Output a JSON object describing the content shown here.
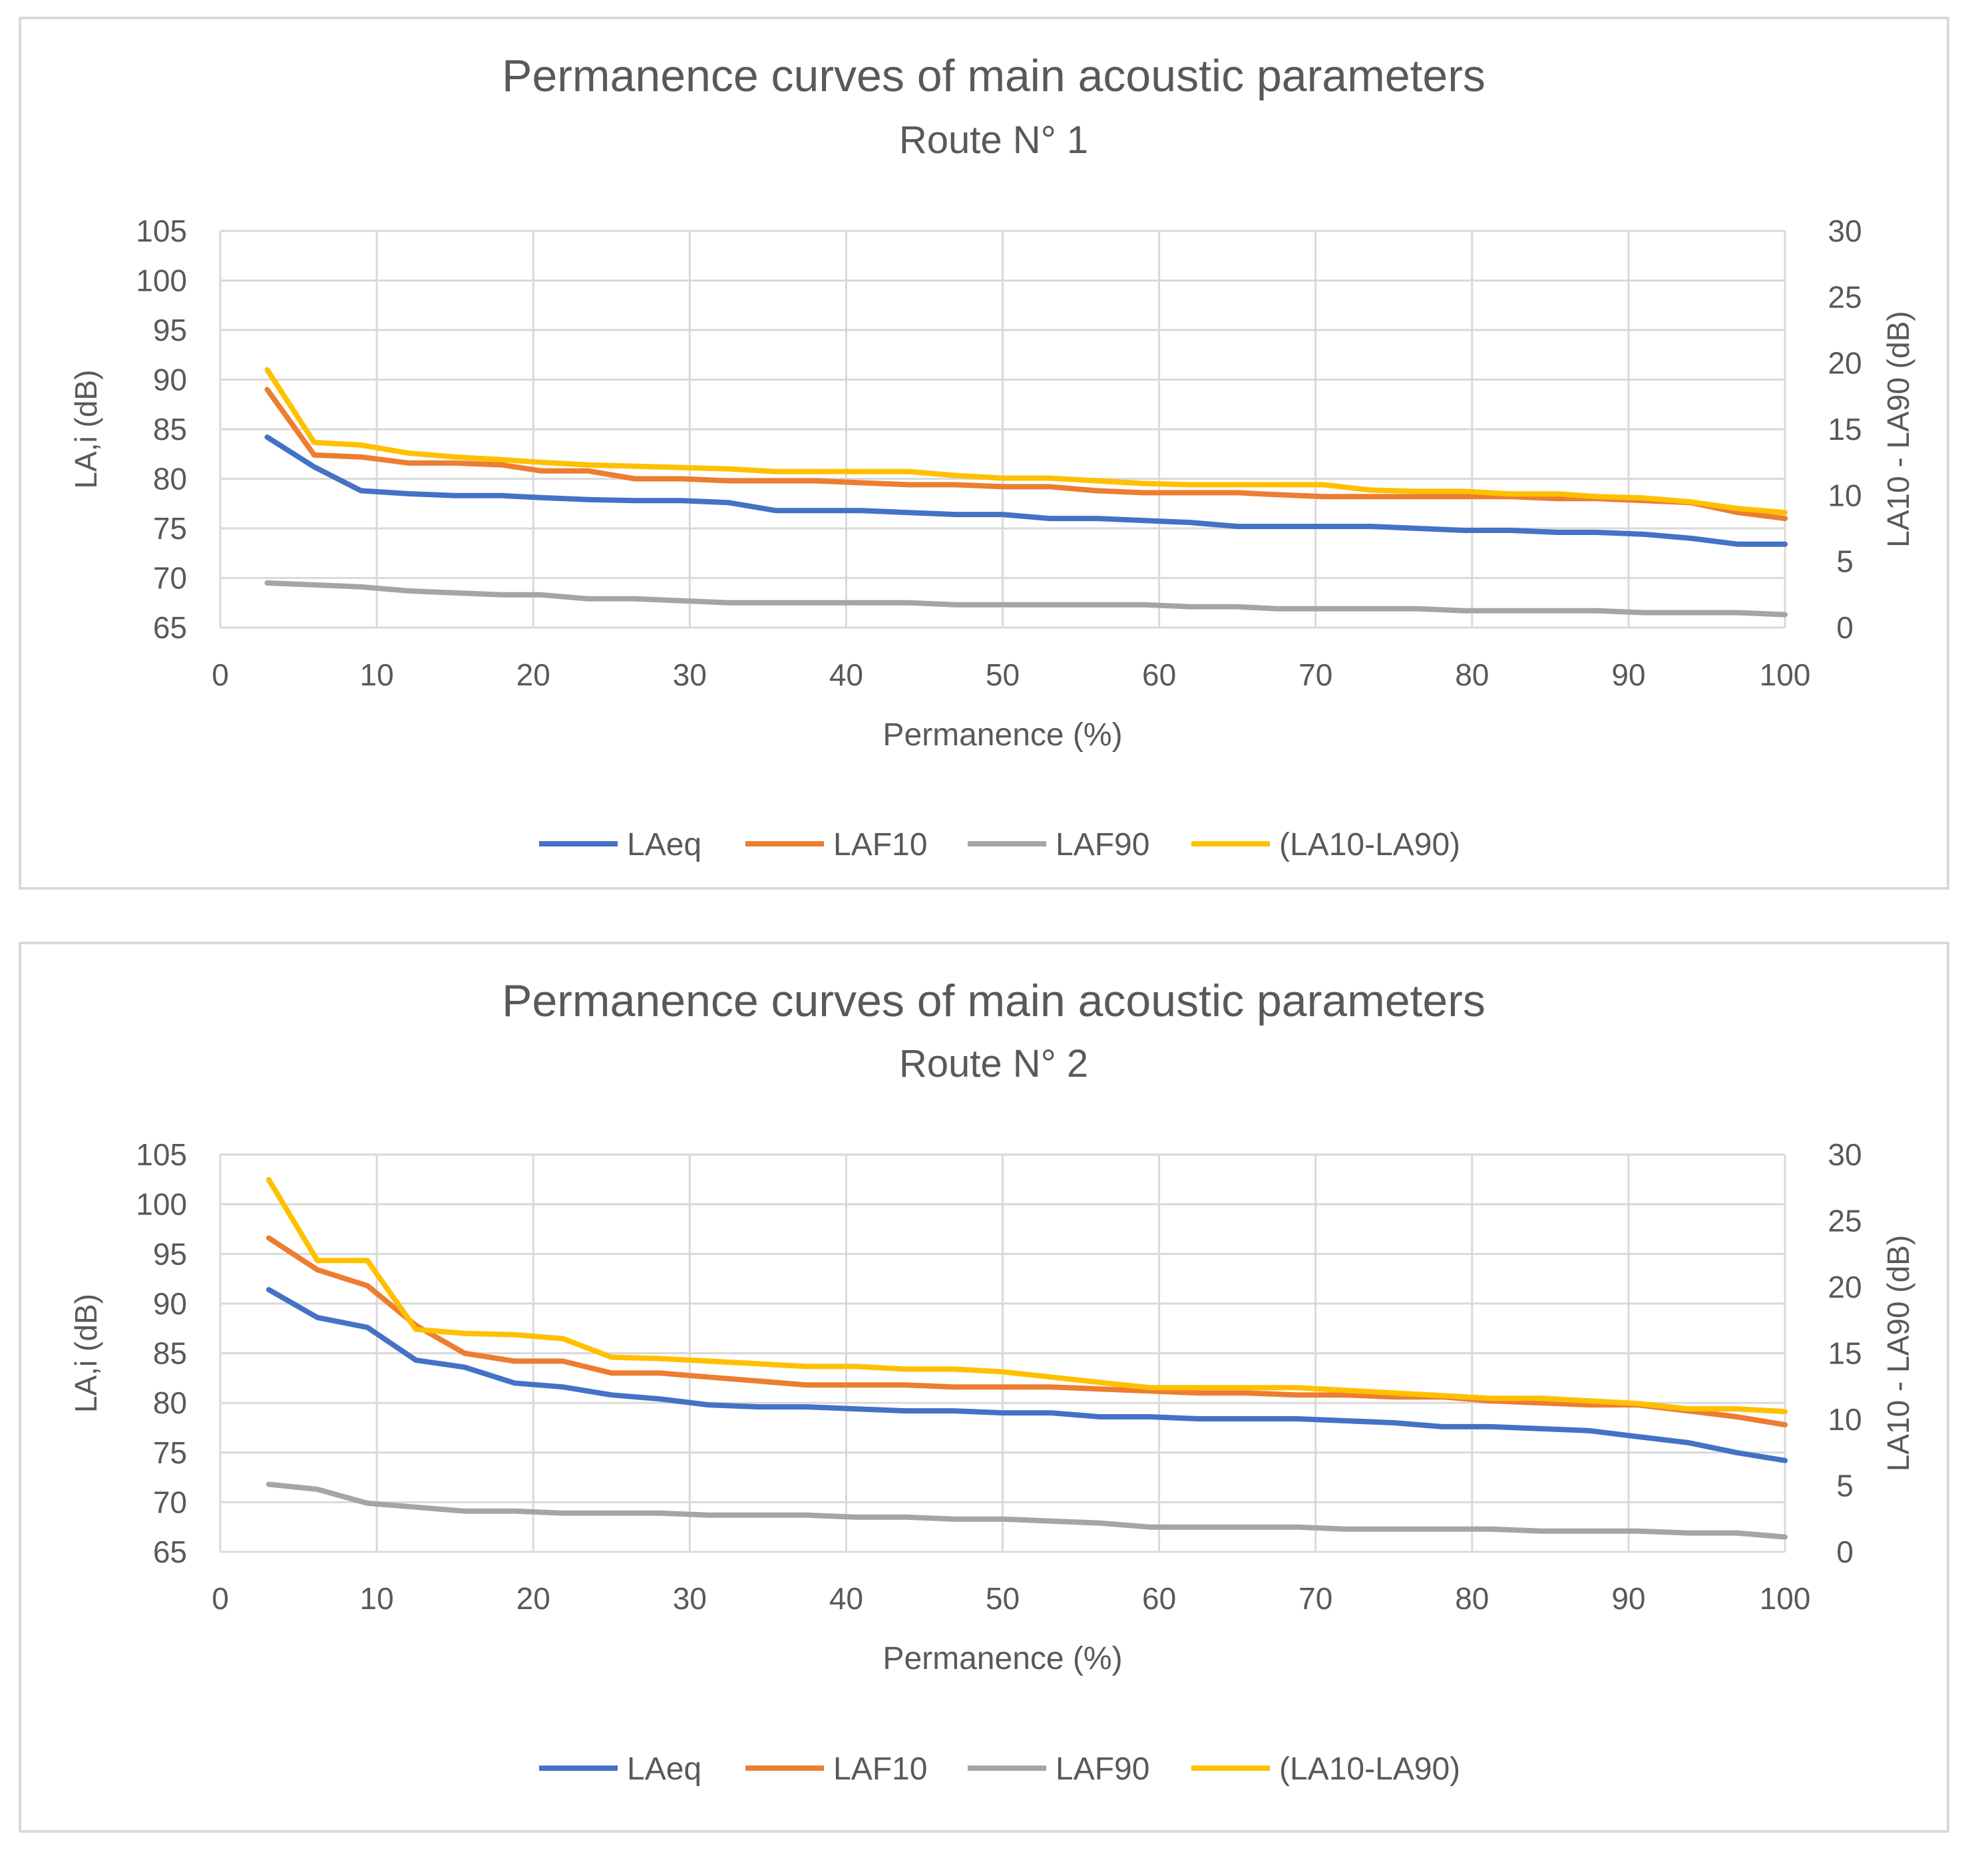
{
  "chart_data": [
    {
      "type": "line",
      "title": "Permanence curves of main acoustic parameters",
      "subtitle": "Route N° 1",
      "xlabel": "Permanence (%)",
      "ylabel": "LA,i (dB)",
      "y2label": "LA10 - LA90 (dB)",
      "xlim": [
        0,
        100
      ],
      "ylim": [
        65,
        105
      ],
      "y2lim": [
        0,
        30
      ],
      "xticks": [
        "0",
        "10",
        "20",
        "30",
        "40",
        "50",
        "60",
        "70",
        "80",
        "90",
        "100"
      ],
      "yticks": [
        "65",
        "70",
        "75",
        "80",
        "85",
        "90",
        "95",
        "100",
        "105"
      ],
      "y2ticks": [
        "0",
        "5",
        "10",
        "15",
        "20",
        "25",
        "30"
      ],
      "grid": true,
      "legend_position": "bottom",
      "x": [
        3,
        6,
        9,
        12,
        15,
        18,
        20.5,
        23.5,
        26.5,
        29.5,
        32.5,
        35.5,
        38,
        41,
        44,
        47,
        50,
        53,
        56,
        59,
        62,
        65,
        67.5,
        70.5,
        73.5,
        76.5,
        79.5,
        82.5,
        85.5,
        88,
        91,
        94,
        97,
        100
      ],
      "series": [
        {
          "name": "LAeq",
          "axis": "left",
          "color": "#4472C4",
          "values": [
            84.2,
            81.2,
            78.8,
            78.5,
            78.3,
            78.3,
            78.1,
            77.9,
            77.8,
            77.8,
            77.6,
            76.8,
            76.8,
            76.8,
            76.6,
            76.4,
            76.4,
            76.0,
            76.0,
            75.8,
            75.6,
            75.2,
            75.2,
            75.2,
            75.2,
            75.0,
            74.8,
            74.8,
            74.6,
            74.6,
            74.4,
            74.0,
            73.4,
            73.4
          ]
        },
        {
          "name": "LAF10",
          "axis": "left",
          "color": "#ED7D31",
          "values": [
            89.0,
            82.4,
            82.2,
            81.6,
            81.6,
            81.4,
            80.8,
            80.8,
            80.0,
            80.0,
            79.8,
            79.8,
            79.8,
            79.6,
            79.4,
            79.4,
            79.2,
            79.2,
            78.8,
            78.6,
            78.6,
            78.6,
            78.4,
            78.2,
            78.2,
            78.2,
            78.2,
            78.2,
            78.0,
            78.0,
            77.8,
            77.6,
            76.6,
            76.0
          ]
        },
        {
          "name": "LAF90",
          "axis": "left",
          "color": "#A5A5A5",
          "values": [
            69.5,
            69.3,
            69.1,
            68.7,
            68.5,
            68.3,
            68.3,
            67.9,
            67.9,
            67.7,
            67.5,
            67.5,
            67.5,
            67.5,
            67.5,
            67.3,
            67.3,
            67.3,
            67.3,
            67.3,
            67.1,
            67.1,
            66.9,
            66.9,
            66.9,
            66.9,
            66.7,
            66.7,
            66.7,
            66.7,
            66.5,
            66.5,
            66.5,
            66.3
          ]
        },
        {
          "name": "(LA10-LA90)",
          "axis": "right",
          "color": "#FFC000",
          "values": [
            19.5,
            14.0,
            13.8,
            13.2,
            12.9,
            12.7,
            12.5,
            12.3,
            12.2,
            12.1,
            12.0,
            11.8,
            11.8,
            11.8,
            11.8,
            11.5,
            11.3,
            11.3,
            11.1,
            10.9,
            10.8,
            10.8,
            10.8,
            10.8,
            10.4,
            10.3,
            10.3,
            10.1,
            10.1,
            9.9,
            9.8,
            9.5,
            9.0,
            8.7
          ]
        }
      ]
    },
    {
      "type": "line",
      "title": "Permanence curves of main acoustic parameters",
      "subtitle": "Route N° 2",
      "xlabel": "Permanence (%)",
      "ylabel": "LA,i (dB)",
      "y2label": "LA10 - LA90 (dB)",
      "xlim": [
        0,
        100
      ],
      "ylim": [
        65,
        105
      ],
      "y2lim": [
        0,
        30
      ],
      "xticks": [
        "0",
        "10",
        "20",
        "30",
        "40",
        "50",
        "60",
        "70",
        "80",
        "90",
        "100"
      ],
      "yticks": [
        "65",
        "70",
        "75",
        "80",
        "85",
        "90",
        "95",
        "100",
        "105"
      ],
      "y2ticks": [
        "0",
        "5",
        "10",
        "15",
        "20",
        "25",
        "30"
      ],
      "grid": true,
      "legend_position": "bottom",
      "x": [
        3.1,
        6.2,
        9.4,
        12.5,
        15.6,
        18.8,
        21.9,
        25,
        28.1,
        31.2,
        34.4,
        37.5,
        40.6,
        43.8,
        46.9,
        50,
        53.1,
        56.2,
        59.4,
        62.5,
        65.6,
        68.8,
        71.9,
        75,
        78.1,
        81.2,
        84.4,
        87.5,
        90.6,
        93.8,
        96.9,
        100
      ],
      "series": [
        {
          "name": "LAeq",
          "axis": "left",
          "color": "#4472C4",
          "values": [
            91.4,
            88.6,
            87.6,
            84.3,
            83.6,
            82.0,
            81.6,
            80.8,
            80.4,
            79.8,
            79.6,
            79.6,
            79.4,
            79.2,
            79.2,
            79.0,
            79.0,
            78.6,
            78.6,
            78.4,
            78.4,
            78.4,
            78.2,
            78.0,
            77.6,
            77.6,
            77.4,
            77.2,
            76.6,
            76.0,
            75.0,
            74.2
          ]
        },
        {
          "name": "LAF10",
          "axis": "left",
          "color": "#ED7D31",
          "values": [
            96.6,
            93.4,
            91.8,
            87.8,
            85.0,
            84.2,
            84.2,
            83.0,
            83.0,
            82.6,
            82.2,
            81.8,
            81.8,
            81.8,
            81.6,
            81.6,
            81.6,
            81.4,
            81.2,
            81.0,
            81.0,
            80.8,
            80.8,
            80.6,
            80.6,
            80.2,
            80.0,
            79.8,
            79.8,
            79.2,
            78.6,
            77.8
          ]
        },
        {
          "name": "LAF90",
          "axis": "left",
          "color": "#A5A5A5",
          "values": [
            71.8,
            71.3,
            69.9,
            69.5,
            69.1,
            69.1,
            68.9,
            68.9,
            68.9,
            68.7,
            68.7,
            68.7,
            68.5,
            68.5,
            68.3,
            68.3,
            68.1,
            67.9,
            67.5,
            67.5,
            67.5,
            67.5,
            67.3,
            67.3,
            67.3,
            67.3,
            67.1,
            67.1,
            67.1,
            66.9,
            66.9,
            66.5
          ]
        },
        {
          "name": "(LA10-LA90)",
          "axis": "right",
          "color": "#FFC000",
          "values": [
            28.1,
            22.0,
            22.0,
            16.8,
            16.5,
            16.4,
            16.1,
            14.7,
            14.6,
            14.4,
            14.2,
            14.0,
            14.0,
            13.8,
            13.8,
            13.6,
            13.2,
            12.8,
            12.4,
            12.4,
            12.4,
            12.4,
            12.2,
            12.0,
            11.8,
            11.6,
            11.6,
            11.4,
            11.2,
            10.8,
            10.8,
            10.6
          ]
        }
      ]
    }
  ]
}
